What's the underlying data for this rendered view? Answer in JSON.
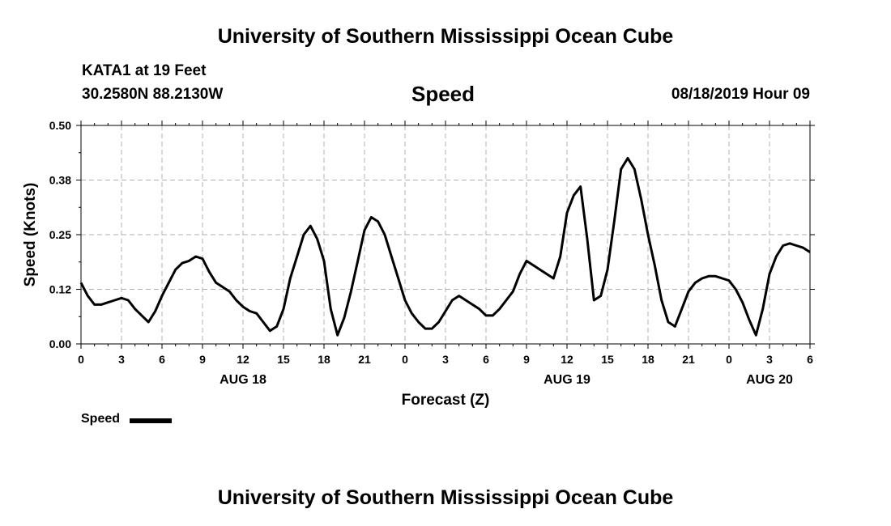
{
  "header": {
    "title_top": "University of Southern Mississippi Ocean Cube",
    "station": "KATA1 at 19 Feet",
    "coords": "30.2580N 88.2130W",
    "plot_title": "Speed",
    "datetime": "08/18/2019 Hour 09",
    "title_bottom": "University of Southern Mississippi Ocean Cube"
  },
  "legend": {
    "label": "Speed",
    "color": "#000000"
  },
  "chart_data": {
    "type": "line",
    "title": "Speed",
    "xlabel": "Forecast (Z)",
    "ylabel": "Speed (Knots)",
    "xlim": [
      0,
      54
    ],
    "ylim": [
      0,
      0.5
    ],
    "yticks": [
      "0.00",
      "0.12",
      "0.25",
      "0.38",
      "0.50"
    ],
    "xtick_labels": [
      "0",
      "3",
      "6",
      "9",
      "12",
      "15",
      "18",
      "21",
      "0",
      "3",
      "6",
      "9",
      "12",
      "15",
      "18",
      "21",
      "0",
      "3",
      "6"
    ],
    "date_labels": [
      {
        "x": 12,
        "label": "AUG 18"
      },
      {
        "x": 36,
        "label": "AUG 19"
      },
      {
        "x": 51,
        "label": "AUG 20"
      }
    ],
    "grid": true,
    "series": [
      {
        "name": "Speed",
        "color": "#000000",
        "x": [
          0,
          0.5,
          1,
          1.5,
          2,
          2.5,
          3,
          3.5,
          4,
          4.5,
          5,
          5.5,
          6,
          6.5,
          7,
          7.5,
          8,
          8.5,
          9,
          9.5,
          10,
          10.5,
          11,
          11.5,
          12,
          12.5,
          13,
          13.5,
          14,
          14.5,
          15,
          15.5,
          16,
          16.5,
          17,
          17.5,
          18,
          18.5,
          19,
          19.5,
          20,
          20.5,
          21,
          21.5,
          22,
          22.5,
          23,
          23.5,
          24,
          24.5,
          25,
          25.5,
          26,
          26.5,
          27,
          27.5,
          28,
          28.5,
          29,
          29.5,
          30,
          30.5,
          31,
          31.5,
          32,
          32.5,
          33,
          33.5,
          34,
          34.5,
          35,
          35.5,
          36,
          36.5,
          37,
          37.5,
          38,
          38.5,
          39,
          39.5,
          40,
          40.5,
          41,
          41.5,
          42,
          42.5,
          43,
          43.5,
          44,
          44.5,
          45,
          45.5,
          46,
          46.5,
          47,
          47.5,
          48,
          48.5,
          49,
          49.5,
          50,
          50.5,
          51,
          51.5,
          52,
          52.5,
          53,
          53.5,
          54
        ],
        "values": [
          0.14,
          0.11,
          0.09,
          0.09,
          0.095,
          0.1,
          0.105,
          0.1,
          0.08,
          0.065,
          0.05,
          0.075,
          0.11,
          0.14,
          0.17,
          0.185,
          0.19,
          0.2,
          0.195,
          0.165,
          0.14,
          0.13,
          0.12,
          0.1,
          0.085,
          0.075,
          0.07,
          0.05,
          0.03,
          0.04,
          0.08,
          0.15,
          0.2,
          0.25,
          0.27,
          0.24,
          0.19,
          0.08,
          0.02,
          0.06,
          0.12,
          0.19,
          0.26,
          0.29,
          0.28,
          0.25,
          0.2,
          0.15,
          0.1,
          0.07,
          0.05,
          0.035,
          0.035,
          0.05,
          0.075,
          0.1,
          0.11,
          0.1,
          0.09,
          0.08,
          0.065,
          0.065,
          0.08,
          0.1,
          0.12,
          0.16,
          0.19,
          0.18,
          0.17,
          0.16,
          0.15,
          0.2,
          0.3,
          0.34,
          0.36,
          0.24,
          0.1,
          0.11,
          0.17,
          0.28,
          0.4,
          0.425,
          0.4,
          0.33,
          0.25,
          0.18,
          0.1,
          0.05,
          0.04,
          0.08,
          0.12,
          0.14,
          0.15,
          0.155,
          0.155,
          0.15,
          0.145,
          0.125,
          0.095,
          0.055,
          0.02,
          0.08,
          0.16,
          0.2,
          0.225,
          0.23,
          0.225,
          0.22,
          0.21
        ]
      }
    ]
  }
}
